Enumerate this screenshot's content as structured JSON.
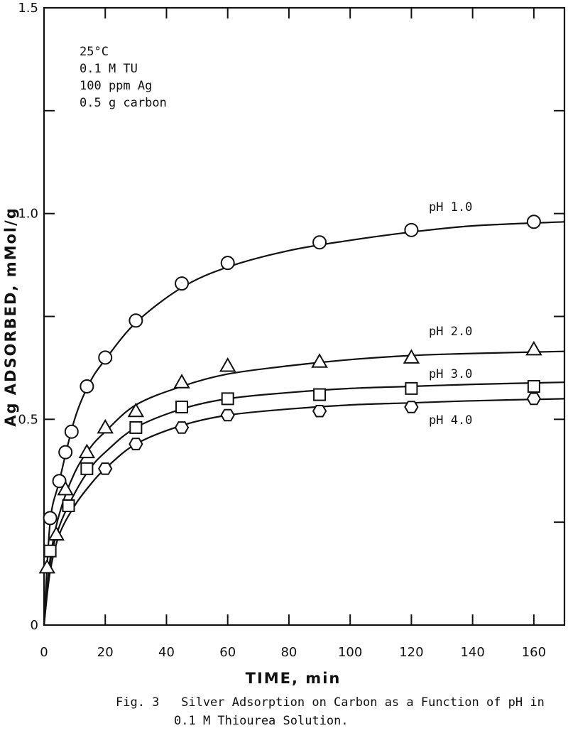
{
  "chart_data": {
    "type": "line",
    "xlabel": "TIME, min",
    "ylabel": "Ag ADSORBED, mMol/g",
    "xlim": [
      0,
      170
    ],
    "ylim": [
      0,
      1.5
    ],
    "x_ticks": [
      0,
      20,
      40,
      60,
      80,
      100,
      120,
      140,
      160
    ],
    "x_tick_labels": [
      "0",
      "20",
      "40",
      "60",
      "80",
      "100",
      "120",
      "140",
      "160"
    ],
    "y_ticks": [
      0,
      0.5,
      1.0,
      1.5
    ],
    "y_tick_labels": [
      "0",
      "0.5",
      "1.0",
      "1.5"
    ],
    "grid": false,
    "annotations": [
      "25°C",
      "0.1 M TU",
      "100 ppm Ag",
      "0.5 g carbon"
    ],
    "series": [
      {
        "name": "pH 1.0",
        "marker": "circle",
        "points": [
          [
            2,
            0.26
          ],
          [
            5,
            0.35
          ],
          [
            7,
            0.42
          ],
          [
            9,
            0.47
          ],
          [
            14,
            0.58
          ],
          [
            20,
            0.65
          ],
          [
            30,
            0.74
          ],
          [
            45,
            0.83
          ],
          [
            60,
            0.88
          ],
          [
            90,
            0.93
          ],
          [
            120,
            0.96
          ],
          [
            160,
            0.98
          ]
        ],
        "curve": [
          [
            0,
            0
          ],
          [
            2,
            0.25
          ],
          [
            5,
            0.35
          ],
          [
            10,
            0.5
          ],
          [
            15,
            0.59
          ],
          [
            20,
            0.645
          ],
          [
            30,
            0.735
          ],
          [
            45,
            0.82
          ],
          [
            60,
            0.87
          ],
          [
            80,
            0.91
          ],
          [
            100,
            0.935
          ],
          [
            120,
            0.955
          ],
          [
            140,
            0.97
          ],
          [
            170,
            0.98
          ]
        ]
      },
      {
        "name": "pH 2.0",
        "marker": "triangle",
        "points": [
          [
            1,
            0.14
          ],
          [
            4,
            0.22
          ],
          [
            7,
            0.33
          ],
          [
            14,
            0.42
          ],
          [
            20,
            0.48
          ],
          [
            30,
            0.52
          ],
          [
            45,
            0.59
          ],
          [
            60,
            0.63
          ],
          [
            90,
            0.64
          ],
          [
            120,
            0.65
          ],
          [
            160,
            0.67
          ]
        ],
        "curve": [
          [
            0,
            0
          ],
          [
            2,
            0.16
          ],
          [
            5,
            0.27
          ],
          [
            10,
            0.37
          ],
          [
            15,
            0.43
          ],
          [
            20,
            0.47
          ],
          [
            30,
            0.535
          ],
          [
            45,
            0.58
          ],
          [
            60,
            0.61
          ],
          [
            80,
            0.63
          ],
          [
            100,
            0.645
          ],
          [
            120,
            0.655
          ],
          [
            140,
            0.66
          ],
          [
            170,
            0.665
          ]
        ]
      },
      {
        "name": "pH 3.0",
        "marker": "square",
        "points": [
          [
            2,
            0.18
          ],
          [
            8,
            0.29
          ],
          [
            14,
            0.38
          ],
          [
            30,
            0.48
          ],
          [
            45,
            0.53
          ],
          [
            60,
            0.55
          ],
          [
            90,
            0.56
          ],
          [
            120,
            0.575
          ],
          [
            160,
            0.58
          ]
        ],
        "curve": [
          [
            0,
            0
          ],
          [
            2,
            0.15
          ],
          [
            5,
            0.24
          ],
          [
            10,
            0.32
          ],
          [
            15,
            0.38
          ],
          [
            20,
            0.42
          ],
          [
            30,
            0.48
          ],
          [
            45,
            0.525
          ],
          [
            60,
            0.55
          ],
          [
            80,
            0.565
          ],
          [
            100,
            0.575
          ],
          [
            120,
            0.58
          ],
          [
            140,
            0.585
          ],
          [
            170,
            0.59
          ]
        ]
      },
      {
        "name": "pH 4.0",
        "marker": "hexagon",
        "points": [
          [
            20,
            0.38
          ],
          [
            30,
            0.44
          ],
          [
            45,
            0.48
          ],
          [
            60,
            0.51
          ],
          [
            90,
            0.52
          ],
          [
            120,
            0.53
          ],
          [
            160,
            0.55
          ]
        ],
        "curve": [
          [
            0,
            0
          ],
          [
            2,
            0.13
          ],
          [
            5,
            0.22
          ],
          [
            10,
            0.29
          ],
          [
            15,
            0.34
          ],
          [
            20,
            0.38
          ],
          [
            30,
            0.44
          ],
          [
            45,
            0.485
          ],
          [
            60,
            0.51
          ],
          [
            80,
            0.525
          ],
          [
            100,
            0.535
          ],
          [
            120,
            0.54
          ],
          [
            140,
            0.545
          ],
          [
            170,
            0.55
          ]
        ]
      }
    ]
  },
  "caption": {
    "line1": "Fig. 3   Silver Adsorption on Carbon as a Function of pH in",
    "line2": "0.1 M Thiourea Solution."
  }
}
